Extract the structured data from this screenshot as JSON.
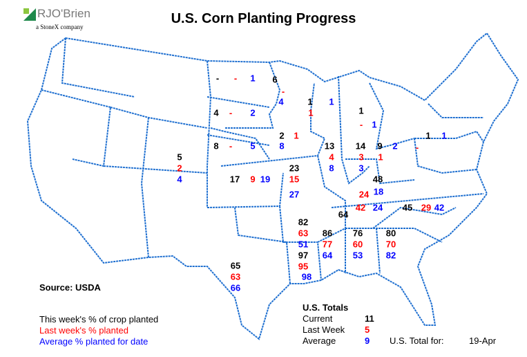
{
  "title": "U.S. Corn Planting Progress",
  "logo": {
    "name": "RJO'Brien",
    "tagline": "a StoneX company"
  },
  "source": "Source: USDA",
  "legend": {
    "current": "This week's % of crop planted",
    "last_week": "Last week's % planted",
    "average": "Average % planted for date"
  },
  "colors": {
    "current": "#000000",
    "last_week": "#ff0000",
    "average": "#0000ff",
    "borders": "#1e6fd0"
  },
  "totals": {
    "heading": "U.S. Totals",
    "current_label": "Current",
    "current": "11",
    "last_week_label": "Last Week",
    "last_week": "5",
    "average_label": "Average",
    "average": "9",
    "date_label": "U.S. Total for:",
    "date": "19-Apr"
  },
  "states": {
    "ND": {
      "current": "-",
      "last_week": "-",
      "average": "1"
    },
    "MN": {
      "current": "6",
      "last_week": "-",
      "average": "4"
    },
    "SD": {
      "current": "4",
      "last_week": "-",
      "average": "2"
    },
    "WI": {
      "current": "1",
      "last_week": "1",
      "average": "1"
    },
    "MI": {
      "current": "1",
      "last_week": "-",
      "average": "1"
    },
    "NE": {
      "current": "8",
      "last_week": "-",
      "average": "5"
    },
    "IA": {
      "current": "2",
      "last_week": "1",
      "average": "8"
    },
    "IL": {
      "current": "13",
      "last_week": "4",
      "average": "8"
    },
    "IN": {
      "current": "14",
      "last_week": "3",
      "average": "3"
    },
    "OH": {
      "current": "9",
      "last_week": "1",
      "average": "2"
    },
    "PA": {
      "current": "1",
      "last_week": "-",
      "average": "1"
    },
    "CO": {
      "current": "5",
      "last_week": "2",
      "average": "4"
    },
    "KS": {
      "current": "17",
      "last_week": "9",
      "average": "19"
    },
    "MO": {
      "current": "23",
      "last_week": "15",
      "average": "27"
    },
    "KY": {
      "current": "48",
      "last_week": "24",
      "average": "18"
    },
    "TN": {
      "current": "64",
      "last_week": "42",
      "average": "24"
    },
    "NC": {
      "current": "45",
      "last_week": "29",
      "average": "42"
    },
    "AR": {
      "current": "82",
      "last_week": "63",
      "average": "51"
    },
    "MS": {
      "current": "86",
      "last_week": "77",
      "average": "64"
    },
    "AL": {
      "current": "76",
      "last_week": "60",
      "average": "53"
    },
    "GA": {
      "current": "80",
      "last_week": "70",
      "average": "82"
    },
    "LA": {
      "current": "97",
      "last_week": "95",
      "average": "98"
    },
    "TX": {
      "current": "65",
      "last_week": "63",
      "average": "66"
    }
  }
}
